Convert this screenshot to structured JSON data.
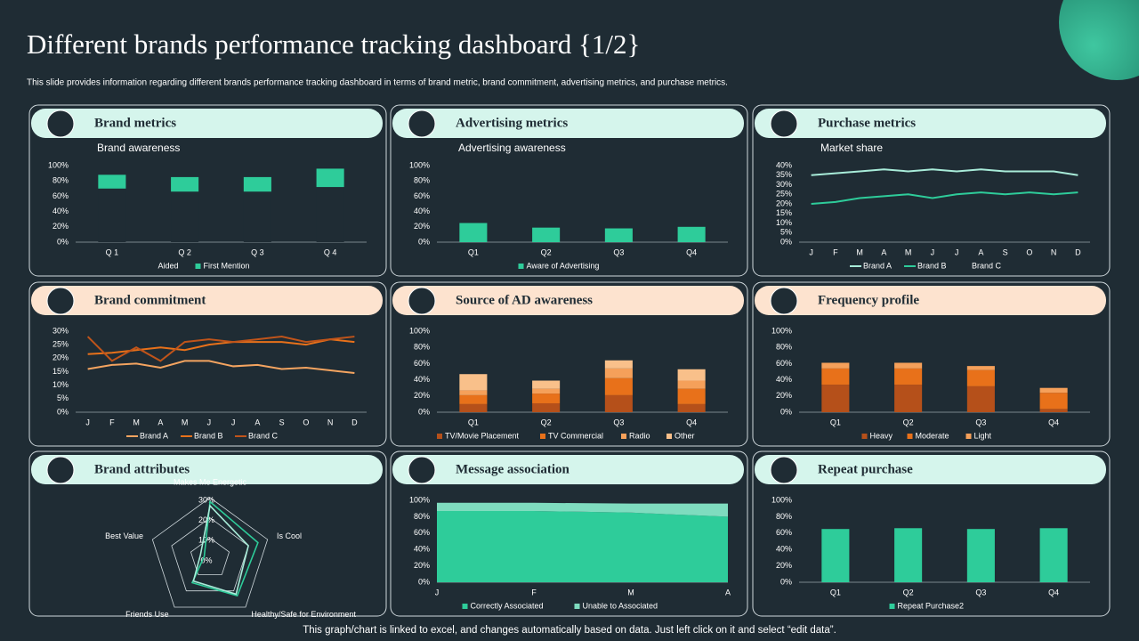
{
  "title": "Different brands performance tracking dashboard {1/2}",
  "subtitle": "This slide provides information regarding different brands performance tracking dashboard in terms of brand metric, brand commitment,  advertising metrics, and purchase metrics.",
  "footer": "This graph/chart is linked to excel, and changes automatically based on data. Just left click on it and select “edit data”.",
  "chart_data": [
    {
      "panel": "Brand metrics",
      "type": "bar",
      "stacked": true,
      "title": "Brand awareness",
      "categories": [
        "Q 1",
        "Q 2",
        "Q 3",
        "Q 4"
      ],
      "series": [
        {
          "name": "Aided",
          "color": "#1f2c34",
          "values": [
            70,
            66,
            66,
            72
          ]
        },
        {
          "name": "First Mention",
          "color": "#2ecc9a",
          "values": [
            18,
            19,
            19,
            24
          ]
        }
      ],
      "ylim": [
        0,
        100
      ],
      "yticks": [
        {
          "value": 0,
          "label": "0%"
        },
        {
          "value": 20,
          "label": "20%"
        },
        {
          "value": 40,
          "label": "40%"
        },
        {
          "value": 60,
          "label": "60%"
        },
        {
          "value": 80,
          "label": "80%"
        },
        {
          "value": 100,
          "label": "100%"
        }
      ]
    },
    {
      "panel": "Advertising metrics",
      "type": "bar",
      "title": "Advertising awareness",
      "categories": [
        "Q1",
        "Q2",
        "Q3",
        "Q4"
      ],
      "series": [
        {
          "name": "Aware of Advertising",
          "color": "#2ecc9a",
          "values": [
            25,
            19,
            18,
            20
          ]
        }
      ],
      "ylim": [
        0,
        100
      ],
      "yticks": [
        {
          "value": 0,
          "label": "0%"
        },
        {
          "value": 20,
          "label": "20%"
        },
        {
          "value": 40,
          "label": "40%"
        },
        {
          "value": 60,
          "label": "60%"
        },
        {
          "value": 80,
          "label": "80%"
        },
        {
          "value": 100,
          "label": "100%"
        }
      ]
    },
    {
      "panel": "Purchase metrics",
      "type": "line",
      "title": "Market share",
      "categories": [
        "J",
        "F",
        "M",
        "A",
        "M",
        "J",
        "J",
        "A",
        "S",
        "O",
        "N",
        "D"
      ],
      "series": [
        {
          "name": "Brand A",
          "color": "#a8ecd9",
          "values": [
            35,
            36,
            37,
            38,
            37,
            38,
            37,
            38,
            37,
            37,
            37,
            35
          ]
        },
        {
          "name": "Brand B",
          "color": "#2ecc9a",
          "values": [
            20,
            21,
            23,
            24,
            25,
            23,
            25,
            26,
            25,
            26,
            25,
            26
          ]
        },
        {
          "name": "Brand C",
          "color": "#1f2c34",
          "values": [
            null,
            null,
            null,
            null,
            null,
            null,
            null,
            null,
            null,
            null,
            null,
            null
          ]
        }
      ],
      "ylim": [
        0,
        40
      ],
      "yticks": [
        {
          "value": 0,
          "label": "0%"
        },
        {
          "value": 5,
          "label": "5%"
        },
        {
          "value": 10,
          "label": "10%"
        },
        {
          "value": 15,
          "label": "15%"
        },
        {
          "value": 20,
          "label": "20%"
        },
        {
          "value": 25,
          "label": "25%"
        },
        {
          "value": 30,
          "label": "30%"
        },
        {
          "value": 35,
          "label": "35%"
        },
        {
          "value": 40,
          "label": "40%"
        }
      ]
    },
    {
      "panel": "Brand commitment",
      "type": "line",
      "categories": [
        "J",
        "F",
        "M",
        "A",
        "M",
        "J",
        "J",
        "A",
        "S",
        "O",
        "N",
        "D"
      ],
      "series": [
        {
          "name": "Brand A",
          "color": "#f4a460",
          "values": [
            16,
            17.5,
            18,
            16.5,
            19,
            19,
            17,
            17.5,
            16,
            16.5,
            15.5,
            14.5
          ]
        },
        {
          "name": "Brand B",
          "color": "#e8711a",
          "values": [
            21.5,
            22,
            23,
            24,
            23,
            25,
            26,
            26,
            26,
            25,
            27,
            26
          ]
        },
        {
          "name": "Brand C",
          "color": "#c0541a",
          "values": [
            28,
            19,
            24,
            19,
            26,
            27,
            26,
            27,
            28,
            26,
            27,
            28
          ]
        }
      ],
      "ylim": [
        0,
        30
      ],
      "yticks": [
        {
          "value": 0,
          "label": "0%"
        },
        {
          "value": 5,
          "label": "5%"
        },
        {
          "value": 10,
          "label": "10%"
        },
        {
          "value": 15,
          "label": "15%"
        },
        {
          "value": 20,
          "label": "20%"
        },
        {
          "value": 25,
          "label": "25%"
        },
        {
          "value": 30,
          "label": "30%"
        }
      ]
    },
    {
      "panel": "Source of AD awareness",
      "type": "bar",
      "stacked": true,
      "categories": [
        "Q1",
        "Q2",
        "Q3",
        "Q4"
      ],
      "series": [
        {
          "name": "TV/Movie Placement",
          "color": "#b5501a",
          "values": [
            10,
            11,
            21,
            10
          ]
        },
        {
          "name": "TV Commercial",
          "color": "#e8711a",
          "values": [
            11,
            12,
            21,
            19
          ]
        },
        {
          "name": "Radio",
          "color": "#f5a05a",
          "values": [
            6,
            6,
            12,
            10
          ]
        },
        {
          "name": "Other",
          "color": "#f9c08a",
          "values": [
            20,
            10,
            10,
            14
          ]
        }
      ],
      "ylim": [
        0,
        100
      ],
      "yticks": [
        {
          "value": 0,
          "label": "0%"
        },
        {
          "value": 20,
          "label": "20%"
        },
        {
          "value": 40,
          "label": "40%"
        },
        {
          "value": 60,
          "label": "60%"
        },
        {
          "value": 80,
          "label": "80%"
        },
        {
          "value": 100,
          "label": "100%"
        }
      ]
    },
    {
      "panel": "Frequency profile",
      "type": "bar",
      "stacked": true,
      "categories": [
        "Q1",
        "Q2",
        "Q3",
        "Q4"
      ],
      "series": [
        {
          "name": "Heavy",
          "color": "#b5501a",
          "values": [
            34,
            34,
            32,
            4
          ]
        },
        {
          "name": "Moderate",
          "color": "#e8711a",
          "values": [
            20,
            20,
            20,
            20
          ]
        },
        {
          "name": "Light",
          "color": "#f5a05a",
          "values": [
            7,
            7,
            5,
            6
          ]
        }
      ],
      "ylim": [
        0,
        100
      ],
      "yticks": [
        {
          "value": 0,
          "label": "0%"
        },
        {
          "value": 20,
          "label": "20%"
        },
        {
          "value": 40,
          "label": "40%"
        },
        {
          "value": 60,
          "label": "60%"
        },
        {
          "value": 80,
          "label": "80%"
        },
        {
          "value": 100,
          "label": "100%"
        }
      ]
    },
    {
      "panel": "Brand attributes",
      "type": "radar",
      "categories": [
        "Makes Me Energetic",
        "Is Cool",
        "Healthy/Safe for Environment",
        "Friends Use",
        "Best Value"
      ],
      "series": [
        {
          "color": "#2ecc9a",
          "values": [
            28,
            25,
            23,
            15,
            3
          ]
        },
        {
          "color": "#a8ecd9",
          "values": [
            26,
            20,
            22,
            14,
            5
          ]
        }
      ],
      "ylim": [
        0,
        30
      ],
      "yticks": [
        {
          "value": 0,
          "label": "0%"
        },
        {
          "value": 10,
          "label": "10%"
        },
        {
          "value": 20,
          "label": "20%"
        },
        {
          "value": 30,
          "label": "30%"
        }
      ]
    },
    {
      "panel": "Message association",
      "type": "area",
      "stacked": true,
      "categories": [
        "J",
        "F",
        "M",
        "A"
      ],
      "series": [
        {
          "name": "Correctly Associated",
          "color": "#2ecc9a",
          "values": [
            87,
            87,
            85,
            80
          ]
        },
        {
          "name": "Unable to Associated",
          "color": "#7fdcbf",
          "values": [
            10,
            10,
            11,
            16
          ]
        }
      ],
      "ylim": [
        0,
        100
      ],
      "yticks": [
        {
          "value": 0,
          "label": "0%"
        },
        {
          "value": 20,
          "label": "20%"
        },
        {
          "value": 40,
          "label": "40%"
        },
        {
          "value": 60,
          "label": "60%"
        },
        {
          "value": 80,
          "label": "80%"
        },
        {
          "value": 100,
          "label": "100%"
        }
      ]
    },
    {
      "panel": "Repeat purchase",
      "type": "bar",
      "categories": [
        "Q1",
        "Q2",
        "Q3",
        "Q4"
      ],
      "series": [
        {
          "name": "Repeat Purchase2",
          "color": "#2ecc9a",
          "values": [
            65,
            66,
            65,
            66
          ]
        }
      ],
      "ylim": [
        0,
        100
      ],
      "yticks": [
        {
          "value": 0,
          "label": "0%"
        },
        {
          "value": 20,
          "label": "20%"
        },
        {
          "value": 40,
          "label": "40%"
        },
        {
          "value": 60,
          "label": "60%"
        },
        {
          "value": 80,
          "label": "80%"
        },
        {
          "value": 100,
          "label": "100%"
        }
      ]
    }
  ]
}
